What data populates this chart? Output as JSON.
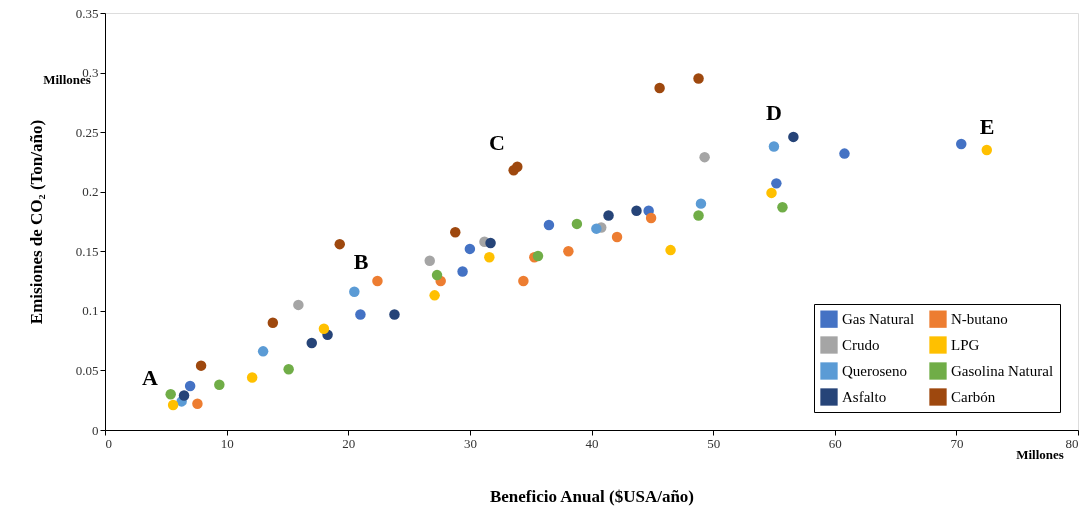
{
  "chart_data": {
    "type": "scatter",
    "xlabel": "Beneficio Anual ($USA/año)",
    "ylabel": "Emisiones de CO₂ (Ton/año)",
    "xlim": [
      0,
      80
    ],
    "xticks": [
      0,
      10,
      20,
      30,
      40,
      50,
      60,
      70,
      80
    ],
    "ylim": [
      0,
      0.35
    ],
    "yticks": [
      0,
      0.05,
      0.1,
      0.15,
      0.2,
      0.25,
      0.3,
      0.35
    ],
    "grid": false,
    "legend": "bottom right",
    "marker": "circle",
    "series": [
      {
        "name": "Gas Natural",
        "color": "#4472c4",
        "x": [
          7.0,
          21.0,
          29.4,
          30.0,
          36.5,
          44.7,
          55.2,
          60.8,
          70.4
        ],
        "values": [
          0.037,
          0.097,
          0.133,
          0.152,
          0.172,
          0.184,
          0.207,
          0.232,
          0.24
        ]
      },
      {
        "name": "Crudo",
        "color": "#a5a5a5",
        "x": [
          15.9,
          26.7,
          31.2,
          40.8,
          49.3
        ],
        "values": [
          0.105,
          0.142,
          0.158,
          0.17,
          0.229
        ]
      },
      {
        "name": "Queroseno",
        "color": "#5b9bd5",
        "x": [
          6.3,
          13.0,
          20.5,
          40.4,
          49.0,
          55.0
        ],
        "values": [
          0.024,
          0.066,
          0.116,
          0.169,
          0.19,
          0.238
        ]
      },
      {
        "name": "Asfalto",
        "color": "#264478",
        "x": [
          6.5,
          17.0,
          18.3,
          23.8,
          31.7,
          41.4,
          43.7,
          56.6
        ],
        "values": [
          0.029,
          0.073,
          0.08,
          0.097,
          0.157,
          0.18,
          0.184,
          0.246
        ]
      },
      {
        "name": "N-butano",
        "color": "#ed7d31",
        "x": [
          7.6,
          22.4,
          27.6,
          34.4,
          35.3,
          38.1,
          42.1,
          44.9
        ],
        "values": [
          0.022,
          0.125,
          0.125,
          0.125,
          0.145,
          0.15,
          0.162,
          0.178
        ]
      },
      {
        "name": "LPG",
        "color": "#ffc000",
        "x": [
          5.6,
          12.1,
          18.0,
          27.1,
          31.6,
          46.5,
          54.8,
          72.5
        ],
        "values": [
          0.021,
          0.044,
          0.085,
          0.113,
          0.145,
          0.151,
          0.199,
          0.235
        ]
      },
      {
        "name": "Gasolina Natural",
        "color": "#70ad47",
        "x": [
          5.4,
          9.4,
          15.1,
          27.3,
          35.6,
          38.8,
          48.8,
          55.7
        ],
        "values": [
          0.03,
          0.038,
          0.051,
          0.13,
          0.146,
          0.173,
          0.18,
          0.187
        ]
      },
      {
        "name": "Carbón",
        "color": "#9e480e",
        "x": [
          7.9,
          13.8,
          19.3,
          28.8,
          33.6,
          33.9,
          45.6,
          48.8
        ],
        "values": [
          0.054,
          0.09,
          0.156,
          0.166,
          0.218,
          0.221,
          0.287,
          0.295
        ]
      }
    ],
    "annotations": [
      "A",
      "B",
      "C",
      "D",
      "E",
      "Millones",
      "Millones"
    ]
  }
}
